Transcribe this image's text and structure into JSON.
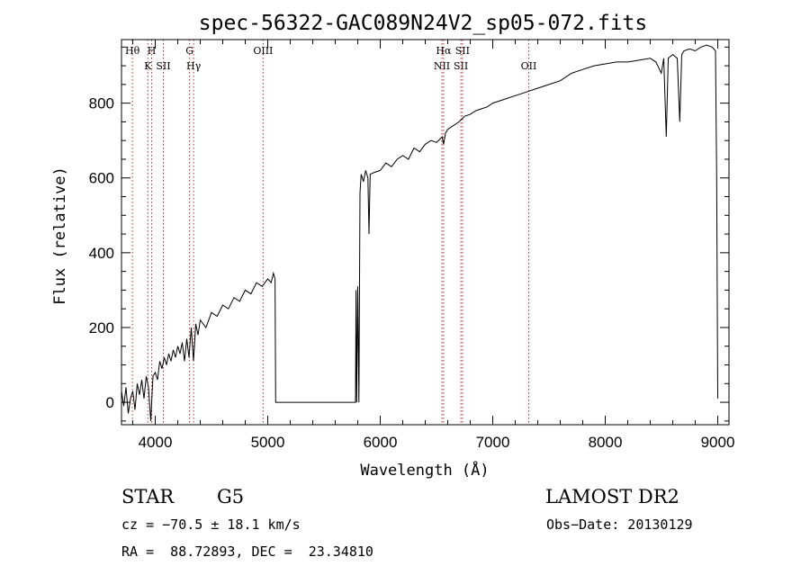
{
  "chart_data": {
    "type": "line",
    "title": "spec-56322-GAC089N24V2_sp05-072.fits",
    "xlabel": "Wavelength (Å)",
    "ylabel": "Flux (relative)",
    "xlim": [
      3700,
      9100
    ],
    "ylim": [
      -60,
      970
    ],
    "x_ticks": [
      4000,
      5000,
      6000,
      7000,
      8000,
      9000
    ],
    "y_ticks": [
      0,
      200,
      400,
      600,
      800
    ],
    "series": [
      {
        "color": "#000000",
        "points": [
          [
            3700,
            30
          ],
          [
            3720,
            -10
          ],
          [
            3740,
            40
          ],
          [
            3760,
            -30
          ],
          [
            3780,
            10
          ],
          [
            3800,
            30
          ],
          [
            3820,
            -20
          ],
          [
            3840,
            50
          ],
          [
            3860,
            20
          ],
          [
            3880,
            60
          ],
          [
            3900,
            10
          ],
          [
            3920,
            70
          ],
          [
            3940,
            40
          ],
          [
            3960,
            -50
          ],
          [
            3980,
            70
          ],
          [
            4000,
            80
          ],
          [
            4020,
            60
          ],
          [
            4040,
            110
          ],
          [
            4060,
            90
          ],
          [
            4080,
            120
          ],
          [
            4100,
            100
          ],
          [
            4120,
            130
          ],
          [
            4140,
            110
          ],
          [
            4160,
            140
          ],
          [
            4180,
            120
          ],
          [
            4200,
            150
          ],
          [
            4220,
            130
          ],
          [
            4240,
            160
          ],
          [
            4260,
            110
          ],
          [
            4280,
            170
          ],
          [
            4300,
            120
          ],
          [
            4320,
            200
          ],
          [
            4340,
            110
          ],
          [
            4360,
            210
          ],
          [
            4380,
            180
          ],
          [
            4400,
            220
          ],
          [
            4450,
            200
          ],
          [
            4500,
            240
          ],
          [
            4550,
            230
          ],
          [
            4600,
            260
          ],
          [
            4650,
            250
          ],
          [
            4700,
            280
          ],
          [
            4750,
            270
          ],
          [
            4800,
            300
          ],
          [
            4850,
            290
          ],
          [
            4900,
            320
          ],
          [
            4950,
            310
          ],
          [
            5000,
            330
          ],
          [
            5030,
            320
          ],
          [
            5050,
            345
          ],
          [
            5065,
            330
          ],
          [
            5070,
            0
          ],
          [
            5200,
            0
          ],
          [
            5400,
            0
          ],
          [
            5600,
            0
          ],
          [
            5780,
            0
          ],
          [
            5785,
            300
          ],
          [
            5790,
            0
          ],
          [
            5800,
            310
          ],
          [
            5810,
            0
          ],
          [
            5820,
            560
          ],
          [
            5830,
            610
          ],
          [
            5850,
            590
          ],
          [
            5870,
            620
          ],
          [
            5890,
            600
          ],
          [
            5900,
            450
          ],
          [
            5910,
            610
          ],
          [
            5950,
            615
          ],
          [
            6000,
            620
          ],
          [
            6050,
            640
          ],
          [
            6100,
            630
          ],
          [
            6150,
            650
          ],
          [
            6200,
            660
          ],
          [
            6250,
            650
          ],
          [
            6300,
            680
          ],
          [
            6350,
            670
          ],
          [
            6400,
            690
          ],
          [
            6450,
            700
          ],
          [
            6500,
            695
          ],
          [
            6550,
            710
          ],
          [
            6563,
            690
          ],
          [
            6580,
            720
          ],
          [
            6600,
            730
          ],
          [
            6650,
            740
          ],
          [
            6700,
            750
          ],
          [
            6750,
            765
          ],
          [
            6800,
            770
          ],
          [
            6850,
            780
          ],
          [
            6900,
            785
          ],
          [
            6950,
            790
          ],
          [
            7000,
            800
          ],
          [
            7100,
            810
          ],
          [
            7200,
            820
          ],
          [
            7300,
            830
          ],
          [
            7400,
            840
          ],
          [
            7500,
            850
          ],
          [
            7600,
            860
          ],
          [
            7700,
            880
          ],
          [
            7800,
            890
          ],
          [
            7900,
            900
          ],
          [
            8000,
            905
          ],
          [
            8100,
            910
          ],
          [
            8200,
            910
          ],
          [
            8300,
            915
          ],
          [
            8400,
            920
          ],
          [
            8450,
            910
          ],
          [
            8498,
            880
          ],
          [
            8520,
            920
          ],
          [
            8542,
            710
          ],
          [
            8560,
            920
          ],
          [
            8600,
            930
          ],
          [
            8640,
            920
          ],
          [
            8662,
            750
          ],
          [
            8680,
            930
          ],
          [
            8700,
            940
          ],
          [
            8750,
            945
          ],
          [
            8800,
            940
          ],
          [
            8850,
            950
          ],
          [
            8900,
            955
          ],
          [
            8950,
            950
          ],
          [
            8980,
            940
          ],
          [
            8990,
            600
          ],
          [
            9000,
            10
          ]
        ]
      }
    ],
    "lines": [
      {
        "x": 3797,
        "labels": [
          "Hθ"
        ]
      },
      {
        "x": 3934,
        "labels": [
          "K"
        ]
      },
      {
        "x": 3968,
        "labels": [
          "H"
        ]
      },
      {
        "x": 4072,
        "labels": [
          "SII"
        ]
      },
      {
        "x": 4305,
        "labels": [
          "G"
        ]
      },
      {
        "x": 4341,
        "labels": [
          "Hγ"
        ]
      },
      {
        "x": 4959,
        "labels": [
          "OIII"
        ]
      },
      {
        "x": 6548,
        "labels": [
          "NII"
        ]
      },
      {
        "x": 6563,
        "labels": [
          "Hα"
        ]
      },
      {
        "x": 6717,
        "labels": [
          "SII"
        ]
      },
      {
        "x": 6731,
        "labels": [
          "SII"
        ]
      },
      {
        "x": 7320,
        "labels": [
          "OII"
        ]
      }
    ]
  },
  "info": {
    "class": "STAR",
    "subclass": "G5",
    "survey": "LAMOST DR2",
    "cz": "cz = −70.5 ± 18.1 km/s",
    "obs_date": "Obs−Date: 20130129",
    "coords": "RA =  88.72893, DEC =  23.34810"
  }
}
